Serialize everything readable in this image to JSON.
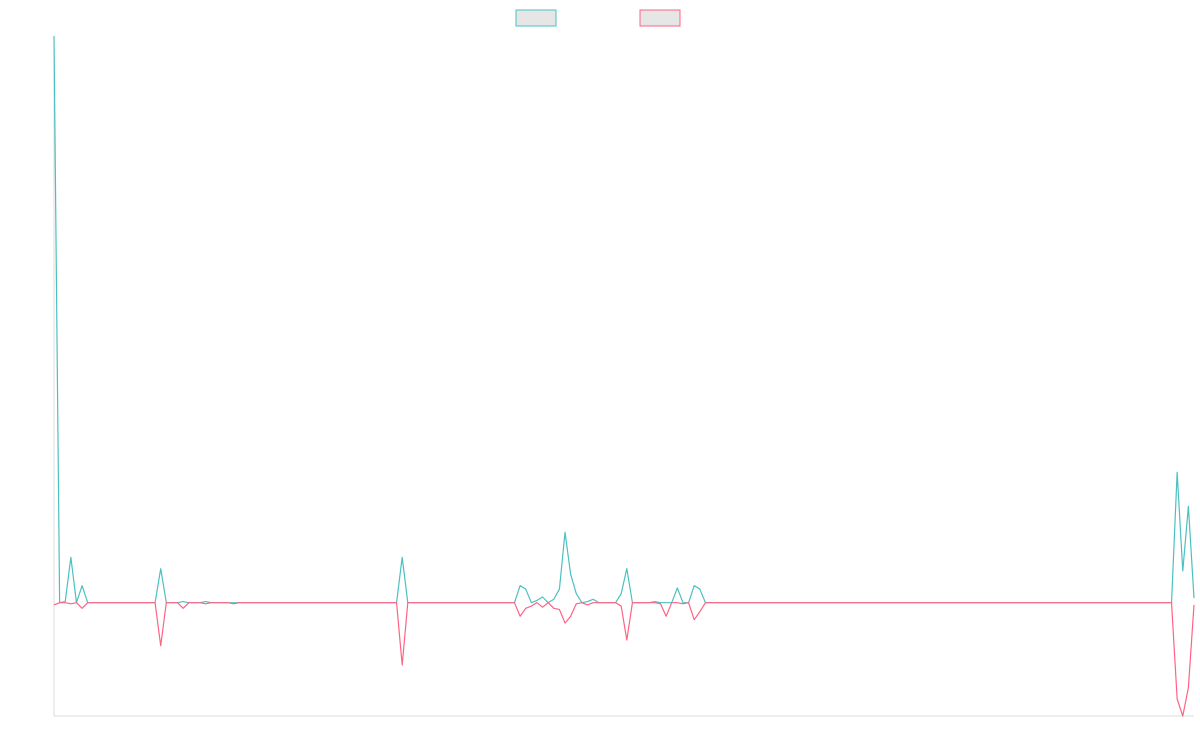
{
  "chart_data": {
    "type": "line",
    "title": "",
    "xlabel": "",
    "ylabel": "",
    "legend_placement": "top-center",
    "grid": false,
    "ylim": [
      -100,
      500
    ],
    "x_count": 201,
    "series": [
      {
        "color": "#4bc0c0",
        "fill": "#e6e6e6",
        "sparse_points": [
          [
            0,
            500
          ],
          [
            1,
            0
          ],
          [
            2,
            1
          ],
          [
            3,
            40
          ],
          [
            4,
            0
          ],
          [
            5,
            15
          ],
          [
            6,
            0
          ],
          [
            18,
            0
          ],
          [
            19,
            30
          ],
          [
            20,
            0
          ],
          [
            22,
            0
          ],
          [
            23,
            1
          ],
          [
            24,
            0
          ],
          [
            26,
            0
          ],
          [
            27,
            1
          ],
          [
            28,
            0
          ],
          [
            61,
            0
          ],
          [
            62,
            40
          ],
          [
            63,
            0
          ],
          [
            82,
            0
          ],
          [
            83,
            15
          ],
          [
            84,
            12
          ],
          [
            85,
            0
          ],
          [
            86,
            2
          ],
          [
            87,
            5
          ],
          [
            88,
            0
          ],
          [
            89,
            3
          ],
          [
            90,
            12
          ],
          [
            91,
            62
          ],
          [
            92,
            25
          ],
          [
            93,
            8
          ],
          [
            94,
            0
          ],
          [
            95,
            1
          ],
          [
            96,
            3
          ],
          [
            97,
            0
          ],
          [
            100,
            0
          ],
          [
            101,
            8
          ],
          [
            102,
            30
          ],
          [
            103,
            0
          ],
          [
            106,
            0
          ],
          [
            107,
            1
          ],
          [
            108,
            0
          ],
          [
            110,
            0
          ],
          [
            111,
            13
          ],
          [
            112,
            0
          ],
          [
            113,
            0
          ],
          [
            114,
            15
          ],
          [
            115,
            12
          ],
          [
            116,
            0
          ],
          [
            199,
            0
          ],
          [
            200,
            115
          ],
          [
            201,
            28
          ],
          [
            202,
            85
          ],
          [
            203,
            4
          ]
        ]
      },
      {
        "color": "#ff6384",
        "fill": "#e6e6e6",
        "sparse_points": [
          [
            0,
            -2
          ],
          [
            1,
            0
          ],
          [
            2,
            0
          ],
          [
            3,
            -1
          ],
          [
            4,
            0
          ],
          [
            5,
            -5
          ],
          [
            6,
            0
          ],
          [
            18,
            0
          ],
          [
            19,
            -38
          ],
          [
            20,
            0
          ],
          [
            22,
            0
          ],
          [
            23,
            -5
          ],
          [
            24,
            0
          ],
          [
            26,
            0
          ],
          [
            27,
            -1
          ],
          [
            28,
            0
          ],
          [
            31,
            0
          ],
          [
            32,
            -1
          ],
          [
            33,
            0
          ],
          [
            61,
            0
          ],
          [
            62,
            -55
          ],
          [
            63,
            0
          ],
          [
            82,
            0
          ],
          [
            83,
            -12
          ],
          [
            84,
            -5
          ],
          [
            85,
            -3
          ],
          [
            86,
            0
          ],
          [
            87,
            -4
          ],
          [
            88,
            0
          ],
          [
            89,
            -5
          ],
          [
            90,
            -6
          ],
          [
            91,
            -18
          ],
          [
            92,
            -12
          ],
          [
            93,
            -1
          ],
          [
            94,
            0
          ],
          [
            95,
            -2
          ],
          [
            96,
            0
          ],
          [
            100,
            0
          ],
          [
            101,
            -3
          ],
          [
            102,
            -33
          ],
          [
            103,
            0
          ],
          [
            106,
            0
          ],
          [
            107,
            0
          ],
          [
            108,
            -1
          ],
          [
            109,
            -12
          ],
          [
            110,
            0
          ],
          [
            111,
            0
          ],
          [
            112,
            -1
          ],
          [
            113,
            0
          ],
          [
            114,
            -15
          ],
          [
            115,
            -8
          ],
          [
            116,
            0
          ],
          [
            199,
            0
          ],
          [
            200,
            -85
          ],
          [
            201,
            -100
          ],
          [
            202,
            -75
          ],
          [
            203,
            -2
          ]
        ]
      }
    ]
  }
}
